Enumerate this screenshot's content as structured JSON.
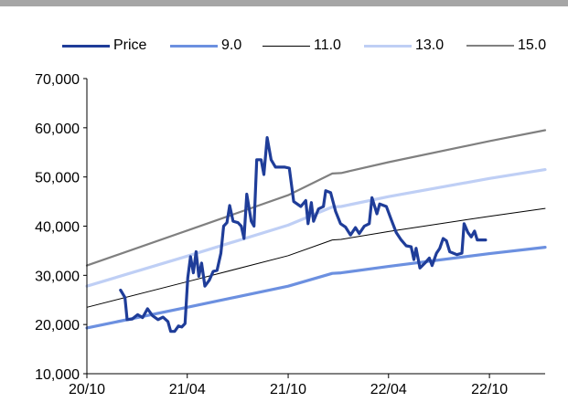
{
  "chart_data": {
    "type": "line",
    "title": "",
    "xlabel": "",
    "ylabel": "",
    "x_ticks": [
      "20/10",
      "21/04",
      "21/10",
      "22/04",
      "22/10"
    ],
    "y_ticks": [
      "70,000",
      "60,000",
      "50,000",
      "40,000",
      "30,000",
      "20,000",
      "10,000"
    ],
    "ylim": [
      10000,
      70000
    ],
    "legend_position": "top",
    "grid": false,
    "series": [
      {
        "name": "Price",
        "color": "#1f3d99",
        "width": 3.2,
        "points": [
          [
            "2020-12-01",
            27000
          ],
          [
            "2020-12-09",
            25500
          ],
          [
            "2020-12-13",
            21000
          ],
          [
            "2020-12-22",
            21100
          ],
          [
            "2021-01-01",
            22000
          ],
          [
            "2021-01-10",
            21400
          ],
          [
            "2021-01-19",
            23200
          ],
          [
            "2021-01-28",
            21800
          ],
          [
            "2021-02-07",
            21000
          ],
          [
            "2021-02-16",
            21500
          ],
          [
            "2021-02-25",
            20600
          ],
          [
            "2021-03-02",
            18600
          ],
          [
            "2021-03-09",
            18600
          ],
          [
            "2021-03-16",
            19700
          ],
          [
            "2021-03-22",
            19500
          ],
          [
            "2021-03-28",
            20200
          ],
          [
            "2021-04-02",
            29500
          ],
          [
            "2021-04-07",
            33800
          ],
          [
            "2021-04-12",
            30500
          ],
          [
            "2021-04-17",
            34800
          ],
          [
            "2021-04-22",
            29800
          ],
          [
            "2021-04-27",
            32500
          ],
          [
            "2021-05-03",
            27800
          ],
          [
            "2021-05-11",
            29000
          ],
          [
            "2021-05-18",
            30800
          ],
          [
            "2021-05-25",
            31000
          ],
          [
            "2021-06-01",
            34500
          ],
          [
            "2021-06-06",
            40000
          ],
          [
            "2021-06-12",
            40700
          ],
          [
            "2021-06-17",
            44200
          ],
          [
            "2021-06-23",
            41000
          ],
          [
            "2021-07-02",
            40700
          ],
          [
            "2021-07-08",
            40000
          ],
          [
            "2021-07-13",
            37500
          ],
          [
            "2021-07-18",
            46500
          ],
          [
            "2021-07-26",
            41000
          ],
          [
            "2021-07-31",
            40000
          ],
          [
            "2021-08-05",
            53500
          ],
          [
            "2021-08-13",
            53500
          ],
          [
            "2021-08-18",
            50500
          ],
          [
            "2021-08-24",
            58000
          ],
          [
            "2021-08-31",
            53500
          ],
          [
            "2021-09-08",
            52000
          ],
          [
            "2021-09-25",
            52000
          ],
          [
            "2021-10-03",
            51800
          ],
          [
            "2021-10-11",
            45000
          ],
          [
            "2021-10-24",
            44000
          ],
          [
            "2021-11-02",
            45200
          ],
          [
            "2021-11-06",
            40500
          ],
          [
            "2021-11-12",
            44800
          ],
          [
            "2021-11-16",
            41000
          ],
          [
            "2021-11-25",
            43500
          ],
          [
            "2021-12-04",
            44000
          ],
          [
            "2021-12-08",
            47200
          ],
          [
            "2021-12-17",
            46800
          ],
          [
            "2021-12-26",
            43000
          ],
          [
            "2022-01-04",
            40500
          ],
          [
            "2022-01-13",
            39800
          ],
          [
            "2022-01-22",
            38200
          ],
          [
            "2022-01-31",
            39700
          ],
          [
            "2022-02-07",
            38500
          ],
          [
            "2022-02-16",
            40000
          ],
          [
            "2022-02-25",
            40500
          ],
          [
            "2022-03-02",
            45800
          ],
          [
            "2022-03-11",
            42500
          ],
          [
            "2022-03-16",
            44500
          ],
          [
            "2022-03-28",
            44000
          ],
          [
            "2022-04-06",
            41300
          ],
          [
            "2022-04-15",
            38700
          ],
          [
            "2022-04-24",
            37200
          ],
          [
            "2022-05-03",
            36000
          ],
          [
            "2022-05-12",
            35800
          ],
          [
            "2022-05-17",
            33200
          ],
          [
            "2022-05-21",
            35500
          ],
          [
            "2022-05-28",
            31500
          ],
          [
            "2022-06-06",
            32500
          ],
          [
            "2022-06-14",
            33500
          ],
          [
            "2022-06-19",
            32000
          ],
          [
            "2022-06-27",
            34500
          ],
          [
            "2022-07-03",
            35500
          ],
          [
            "2022-07-09",
            37500
          ],
          [
            "2022-07-15",
            37000
          ],
          [
            "2022-07-21",
            34800
          ],
          [
            "2022-08-03",
            34200
          ],
          [
            "2022-08-12",
            34500
          ],
          [
            "2022-08-16",
            40500
          ],
          [
            "2022-08-23",
            38700
          ],
          [
            "2022-08-29",
            37800
          ],
          [
            "2022-09-04",
            39000
          ],
          [
            "2022-09-09",
            37200
          ],
          [
            "2022-09-24",
            37200
          ]
        ]
      },
      {
        "name": "9.0",
        "color": "#6c90e0",
        "width": 3.2,
        "points": [
          [
            "2020-10-01",
            19300
          ],
          [
            "2021-04-01",
            23500
          ],
          [
            "2021-10-01",
            27800
          ],
          [
            "2021-12-20",
            30400
          ],
          [
            "2022-01-05",
            30500
          ],
          [
            "2022-04-01",
            31800
          ],
          [
            "2022-10-01",
            34400
          ],
          [
            "2023-01-10",
            35700
          ]
        ]
      },
      {
        "name": "11.0",
        "color": "#000000",
        "width": 1,
        "points": [
          [
            "2020-10-01",
            23500
          ],
          [
            "2021-04-01",
            28700
          ],
          [
            "2021-10-01",
            34000
          ],
          [
            "2021-12-20",
            37200
          ],
          [
            "2022-01-05",
            37300
          ],
          [
            "2022-04-01",
            38900
          ],
          [
            "2022-10-01",
            42000
          ],
          [
            "2023-01-10",
            43600
          ]
        ]
      },
      {
        "name": "13.0",
        "color": "#bfcff5",
        "width": 3.2,
        "points": [
          [
            "2020-10-01",
            27800
          ],
          [
            "2021-04-01",
            33900
          ],
          [
            "2021-10-01",
            40200
          ],
          [
            "2021-12-20",
            43900
          ],
          [
            "2022-01-05",
            44000
          ],
          [
            "2022-04-01",
            46000
          ],
          [
            "2022-10-01",
            49700
          ],
          [
            "2023-01-10",
            51500
          ]
        ]
      },
      {
        "name": "15.0",
        "color": "#808080",
        "width": 2.2,
        "points": [
          [
            "2020-10-01",
            32000
          ],
          [
            "2021-04-01",
            39100
          ],
          [
            "2021-10-01",
            46300
          ],
          [
            "2021-12-20",
            50700
          ],
          [
            "2022-01-05",
            50800
          ],
          [
            "2022-04-01",
            53000
          ],
          [
            "2022-10-01",
            57300
          ],
          [
            "2023-01-10",
            59500
          ]
        ]
      }
    ]
  }
}
